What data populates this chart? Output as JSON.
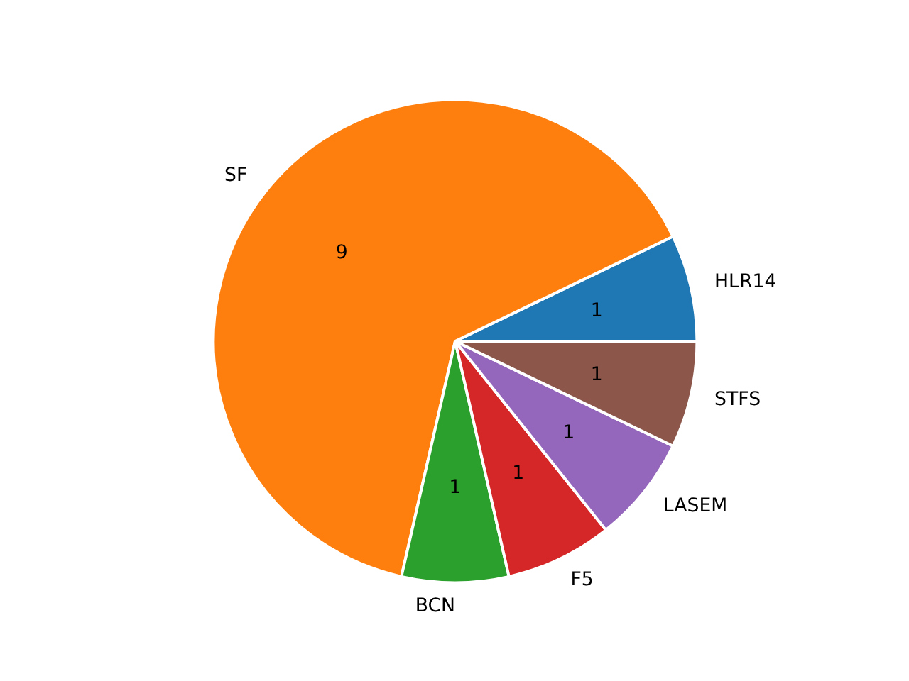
{
  "chart_data": {
    "type": "pie",
    "categories": [
      "HLR14",
      "SF",
      "BCN",
      "F5",
      "LASEM",
      "STFS"
    ],
    "values": [
      1,
      9,
      1,
      1,
      1,
      1
    ],
    "colors": [
      "#1f77b4",
      "#ff7f0e",
      "#2ca02c",
      "#d62728",
      "#9467bd",
      "#8c564b"
    ],
    "data_labels": true
  }
}
